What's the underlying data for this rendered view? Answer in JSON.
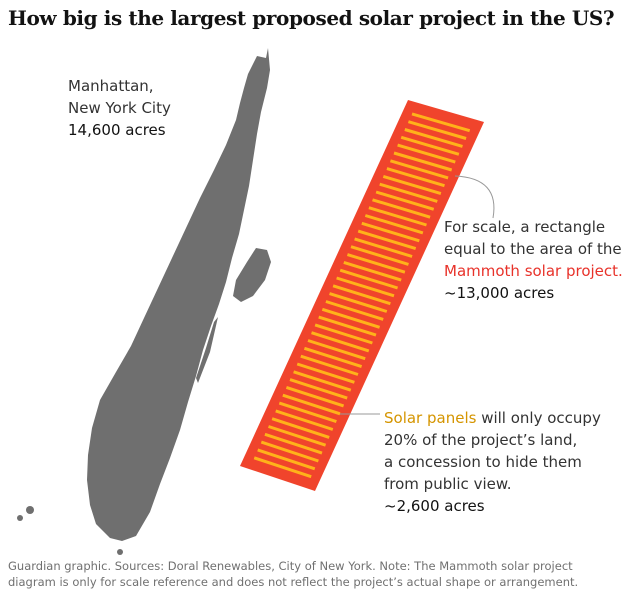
{
  "title": "How big is the largest proposed solar project in the US?",
  "manhattan": {
    "name_line1": "Manhattan,",
    "name_line2": "New York City",
    "area": "14,600 acres"
  },
  "scale_rect": {
    "line1": "For scale, a rectangle",
    "line2": "equal to the area of the",
    "project": "Mammoth solar project.",
    "area": "~13,000 acres"
  },
  "panels": {
    "highlight": "Solar panels",
    "line1_rest": " will only occupy",
    "line2": "20% of the project’s land,",
    "line3": "a concession to hide them",
    "line4": "from public view.",
    "area": "~2,600 acres"
  },
  "footer": "Guardian graphic. Sources: Doral Renewables, City of New York. Note: The Mammoth solar project diagram is only for scale reference and does not reflect the project’s actual shape or arrangement.",
  "colors": {
    "manhattan": "#6f6f6f",
    "project_rect": "#f0442c",
    "panels": "#ffb21a",
    "leader": "#999999"
  },
  "icons": {
    "manhattan_shape": "manhattan-island-map"
  }
}
